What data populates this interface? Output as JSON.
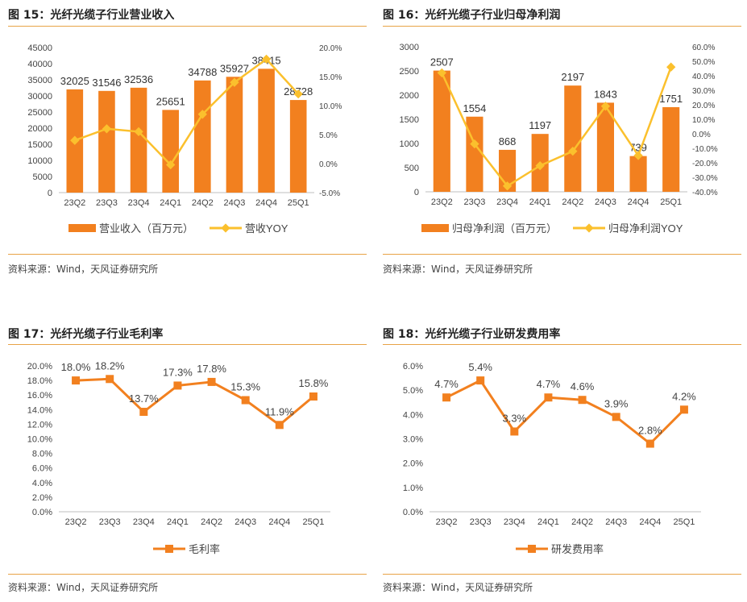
{
  "panels": [
    {
      "title": "图 15：光纤光缆子行业营业收入",
      "source": "资料来源：Wind，天风证券研究所",
      "legend": [
        "营业收入（百万元）",
        "营收YOY"
      ]
    },
    {
      "title": "图 16：光纤光缆子行业归母净利润",
      "source": "资料来源：Wind，天风证券研究所",
      "legend": [
        "归母净利润（百万元）",
        "归母净利润YOY"
      ]
    },
    {
      "title": "图 17：光纤光缆子行业毛利率",
      "source": "资料来源：Wind，天风证券研究所",
      "legend": [
        "毛利率"
      ]
    },
    {
      "title": "图 18：光纤光缆子行业研发费用率",
      "source": "资料来源：Wind，天风证券研究所",
      "legend": [
        "研发费用率"
      ]
    }
  ],
  "colors": {
    "bar": "#f2801f",
    "yoy_line": "#fbc02d",
    "line": "#f2801f",
    "rule": "#e8a346"
  },
  "chart_data": [
    {
      "type": "bar",
      "categories": [
        "23Q2",
        "23Q3",
        "23Q4",
        "24Q1",
        "24Q2",
        "24Q3",
        "24Q4",
        "25Q1"
      ],
      "series": [
        {
          "name": "营业收入（百万元）",
          "type": "bar",
          "axis": "left",
          "values": [
            32025,
            31546,
            32536,
            25651,
            34788,
            35927,
            38415,
            28728
          ],
          "labels": [
            "32025",
            "31546",
            "32536",
            "25651",
            "34788",
            "35927",
            "38415",
            "28728"
          ]
        },
        {
          "name": "营收YOY",
          "type": "line",
          "axis": "right",
          "values": [
            4.0,
            6.0,
            5.5,
            -0.2,
            8.5,
            14.0,
            18.0,
            12.0
          ]
        }
      ],
      "ylim": [
        0,
        45000
      ],
      "yticks": [
        "0",
        "5000",
        "10000",
        "15000",
        "20000",
        "25000",
        "30000",
        "35000",
        "40000",
        "45000"
      ],
      "y2lim": [
        -5,
        20
      ],
      "y2ticks": [
        "-5.0%",
        "0.0%",
        "5.0%",
        "10.0%",
        "15.0%",
        "20.0%"
      ],
      "legend_position": "bottom"
    },
    {
      "type": "bar",
      "categories": [
        "23Q2",
        "23Q3",
        "23Q4",
        "24Q1",
        "24Q2",
        "24Q3",
        "24Q4",
        "25Q1"
      ],
      "series": [
        {
          "name": "归母净利润（百万元）",
          "type": "bar",
          "axis": "left",
          "values": [
            2507,
            1554,
            868,
            1197,
            2197,
            1843,
            739,
            1751
          ],
          "labels": [
            "2507",
            "1554",
            "868",
            "1197",
            "2197",
            "1843",
            "739",
            "1751"
          ]
        },
        {
          "name": "归母净利润YOY",
          "type": "line",
          "axis": "right",
          "values": [
            42.0,
            -7.0,
            -36.0,
            -22.0,
            -12.0,
            19.0,
            -15.0,
            46.0
          ]
        }
      ],
      "ylim": [
        0,
        3000
      ],
      "yticks": [
        "0",
        "500",
        "1000",
        "1500",
        "2000",
        "2500",
        "3000"
      ],
      "y2lim": [
        -40,
        60
      ],
      "y2ticks": [
        "-40.0%",
        "-30.0%",
        "-20.0%",
        "-10.0%",
        "0.0%",
        "10.0%",
        "20.0%",
        "30.0%",
        "40.0%",
        "50.0%",
        "60.0%"
      ],
      "legend_position": "bottom"
    },
    {
      "type": "line",
      "categories": [
        "23Q2",
        "23Q3",
        "23Q4",
        "24Q1",
        "24Q2",
        "24Q3",
        "24Q4",
        "25Q1"
      ],
      "series": [
        {
          "name": "毛利率",
          "values": [
            18.0,
            18.2,
            13.7,
            17.3,
            17.8,
            15.3,
            11.9,
            15.8
          ],
          "labels": [
            "18.0%",
            "18.2%",
            "13.7%",
            "17.3%",
            "17.8%",
            "15.3%",
            "11.9%",
            "15.8%"
          ]
        }
      ],
      "ylim": [
        0,
        20
      ],
      "yticks": [
        "0.0%",
        "2.0%",
        "4.0%",
        "6.0%",
        "8.0%",
        "10.0%",
        "12.0%",
        "14.0%",
        "16.0%",
        "18.0%",
        "20.0%"
      ],
      "legend_position": "bottom"
    },
    {
      "type": "line",
      "categories": [
        "23Q2",
        "23Q3",
        "23Q4",
        "24Q1",
        "24Q2",
        "24Q3",
        "24Q4",
        "25Q1"
      ],
      "series": [
        {
          "name": "研发费用率",
          "values": [
            4.7,
            5.4,
            3.3,
            4.7,
            4.6,
            3.9,
            2.8,
            4.2
          ],
          "labels": [
            "4.7%",
            "5.4%",
            "3.3%",
            "4.7%",
            "4.6%",
            "3.9%",
            "2.8%",
            "4.2%"
          ]
        }
      ],
      "ylim": [
        0,
        6
      ],
      "yticks": [
        "0.0%",
        "1.0%",
        "2.0%",
        "3.0%",
        "4.0%",
        "5.0%",
        "6.0%"
      ],
      "legend_position": "bottom"
    }
  ]
}
